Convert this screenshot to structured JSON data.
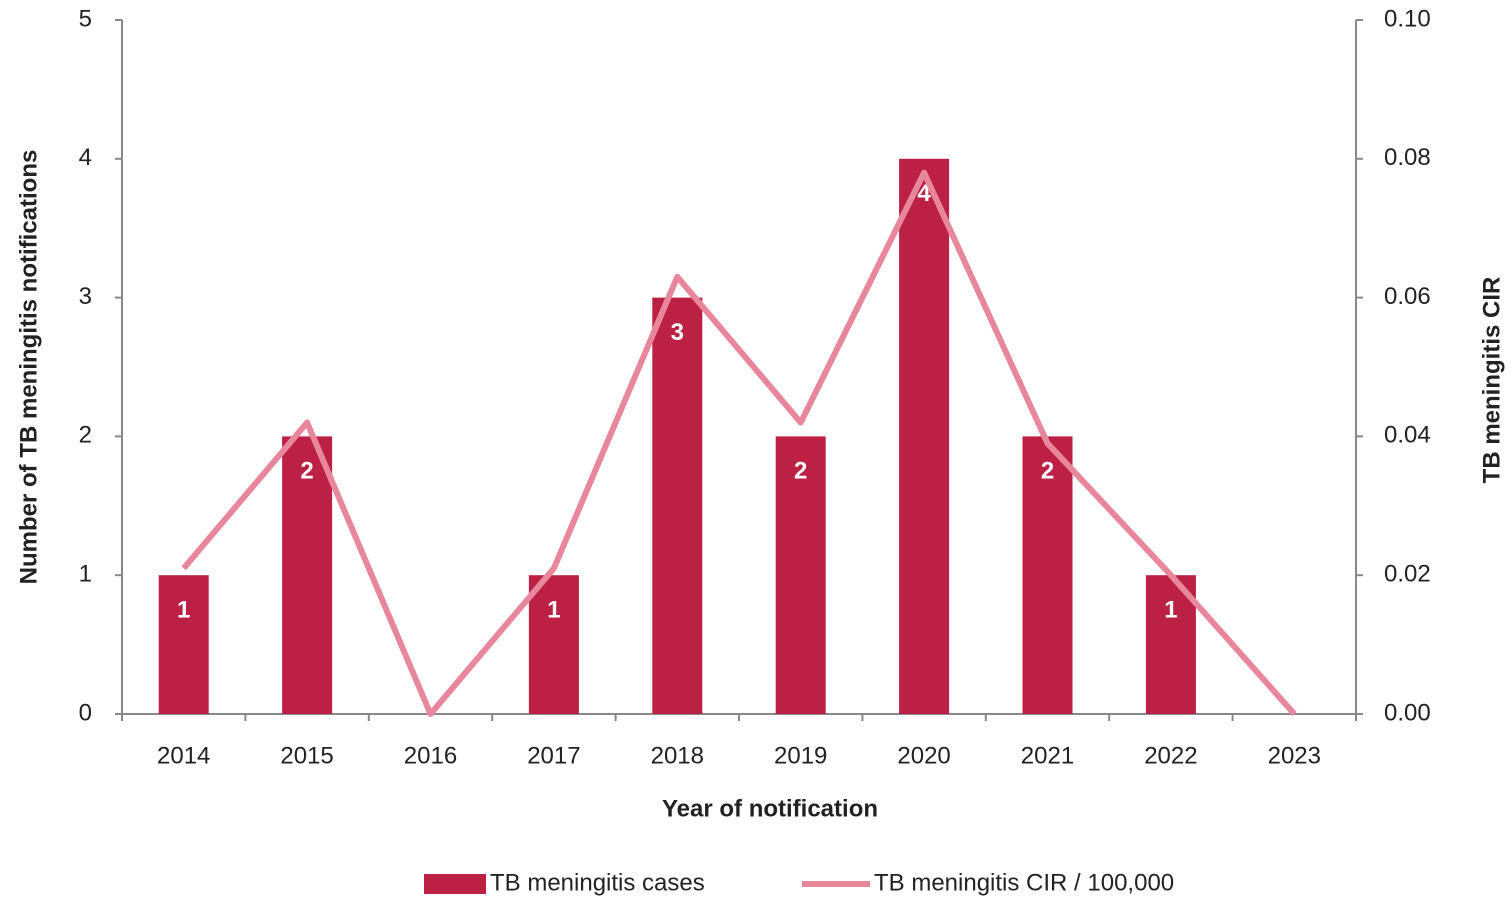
{
  "chart_data": {
    "type": "bar",
    "xlabel": "Year of notification",
    "ylabel": "Number of TB meningitis notifications",
    "y2label": "TB meningitis CIR",
    "categories": [
      "2014",
      "2015",
      "2016",
      "2017",
      "2018",
      "2019",
      "2020",
      "2021",
      "2022",
      "2023"
    ],
    "series": [
      {
        "name": "TB meningitis cases",
        "type": "bar",
        "color": "#bc2045",
        "values": [
          1,
          2,
          0,
          1,
          3,
          2,
          4,
          2,
          1,
          0
        ]
      },
      {
        "name": "TB meningitis CIR / 100,000",
        "type": "line",
        "axis": "y2",
        "color": "#e8879c",
        "values": [
          0.021,
          0.042,
          0,
          0.021,
          0.063,
          0.042,
          0.078,
          0.039,
          0.02,
          0
        ]
      }
    ],
    "ylim": [
      0,
      5
    ],
    "yticks": [
      0,
      1,
      2,
      3,
      4,
      5
    ],
    "y2lim": [
      0,
      0.1
    ],
    "y2ticks": [
      {
        "value": 0,
        "label": "0.00"
      },
      0.02,
      0.04,
      0.06,
      0.08,
      {
        "value": 0.1,
        "label": "0.10"
      }
    ],
    "legend": "bottom"
  }
}
